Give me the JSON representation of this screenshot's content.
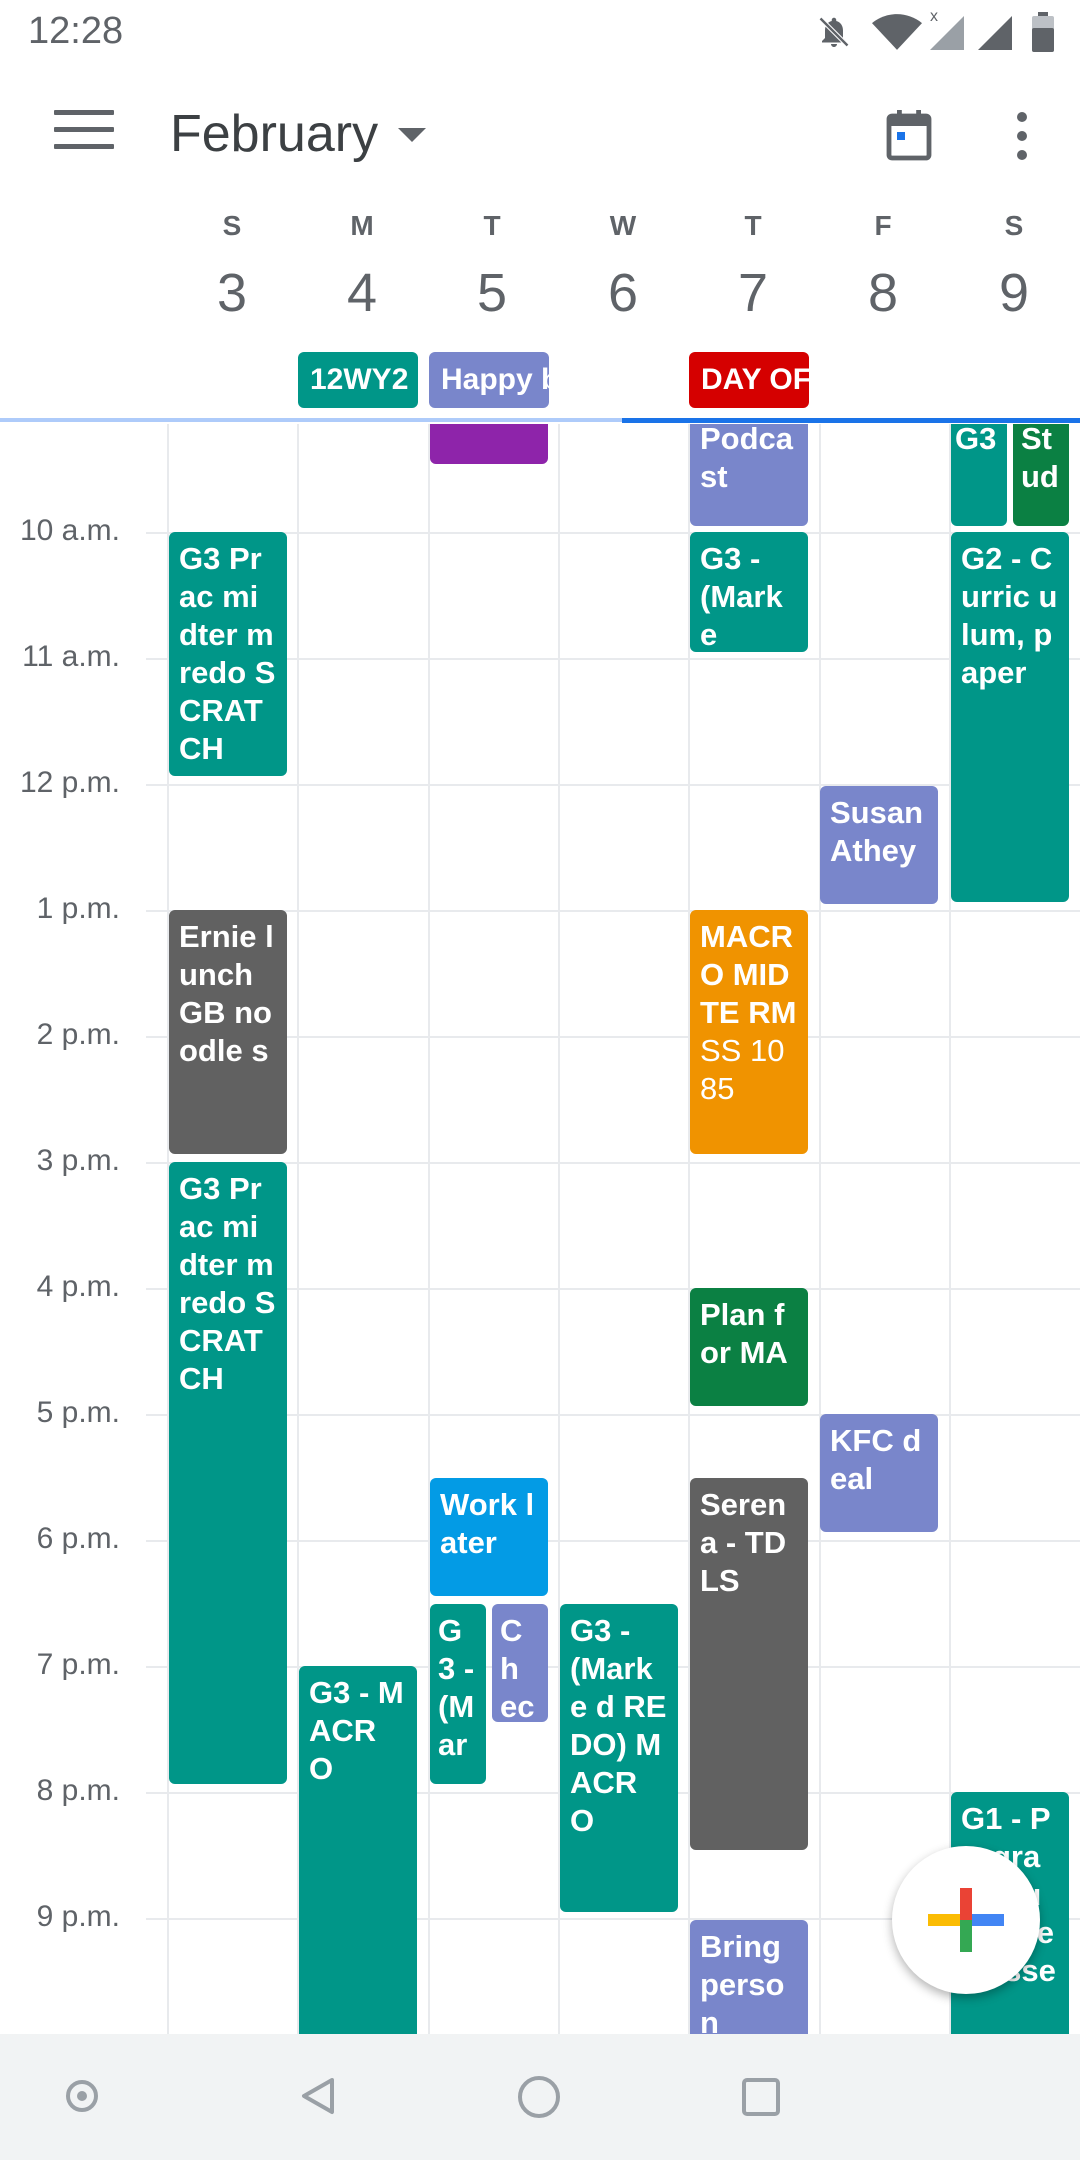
{
  "status_bar": {
    "time": "12:28"
  },
  "app_bar": {
    "month": "February"
  },
  "days": [
    {
      "dow": "S",
      "num": "3"
    },
    {
      "dow": "M",
      "num": "4"
    },
    {
      "dow": "T",
      "num": "5"
    },
    {
      "dow": "W",
      "num": "6"
    },
    {
      "dow": "T",
      "num": "7"
    },
    {
      "dow": "F",
      "num": "8"
    },
    {
      "dow": "S",
      "num": "9"
    }
  ],
  "all_day": [
    {
      "day": 1,
      "title": "12WY2",
      "color": "#009688"
    },
    {
      "day": 2,
      "title": "Happy b",
      "color": "#7986cb"
    },
    {
      "day": 4,
      "title": "DAY OF",
      "color": "#d50000"
    }
  ],
  "hours": [
    "10 a.m.",
    "11 a.m.",
    "12 p.m.",
    "1 p.m.",
    "2 p.m.",
    "3 p.m.",
    "4 p.m.",
    "5 p.m.",
    "6 p.m.",
    "7 p.m.",
    "8 p.m.",
    "9 p.m."
  ],
  "events": [
    {
      "id": "e1",
      "title": "",
      "color": "#8e24aa"
    },
    {
      "id": "e2",
      "title": "Podca st",
      "color": "#7986cb"
    },
    {
      "id": "e3",
      "title": "G3",
      "color": "#009688"
    },
    {
      "id": "e4",
      "title": "St ud",
      "color": "#0b8043"
    },
    {
      "id": "e5",
      "title": "G3 Prac midter m redo SCRAT CH",
      "color": "#009688"
    },
    {
      "id": "e6",
      "title": "G3 - (Marke",
      "color": "#009688"
    },
    {
      "id": "e7",
      "title": "G2 - Curric ulum, paper",
      "color": "#009688"
    },
    {
      "id": "e8",
      "title": "Susan Athey",
      "color": "#7986cb"
    },
    {
      "id": "e9",
      "title": "Ernie lunch GB noodle s",
      "color": "#616161"
    },
    {
      "id": "e10",
      "title": "MACR O MIDTE RM",
      "location": "SS 1085",
      "color": "#f09300"
    },
    {
      "id": "e11",
      "title": "G3 Prac midter m redo SCRAT CH",
      "color": "#009688"
    },
    {
      "id": "e12",
      "title": "Plan for MA",
      "color": "#0b8043"
    },
    {
      "id": "e13",
      "title": "KFC deal",
      "color": "#7986cb"
    },
    {
      "id": "e14",
      "title": "Work later",
      "color": "#039be5"
    },
    {
      "id": "e15",
      "title": "Serena - TDLS",
      "color": "#616161"
    },
    {
      "id": "e16",
      "title": "G3 - (M ar",
      "color": "#009688"
    },
    {
      "id": "e17",
      "title": "Ch ec",
      "color": "#7986cb"
    },
    {
      "id": "e18",
      "title": "G3 - (Marke d REDO) MACR O",
      "color": "#009688"
    },
    {
      "id": "e19",
      "title": "G3 - MACR O",
      "color": "#009688"
    },
    {
      "id": "e20",
      "title": "G1 - Progra m/ Tu tu/ the classe",
      "color": "#009688"
    },
    {
      "id": "e21",
      "title": "Bring person",
      "color": "#7986cb"
    }
  ],
  "icons": {
    "menu": "menu-icon",
    "calendar": "calendar-today-icon",
    "more": "more-vert-icon",
    "fab": "plus-icon",
    "nav_back": "back-icon",
    "nav_home": "home-icon",
    "nav_recents": "recents-icon"
  }
}
